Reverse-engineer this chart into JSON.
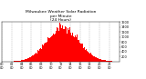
{
  "title": "Milwaukee Weather Solar Radiation\nper Minute\n(24 Hours)",
  "title_fontsize": 3.2,
  "bar_color": "#ff0000",
  "bg_color": "#ffffff",
  "ylim": [
    0,
    1600
  ],
  "yticks": [
    200,
    400,
    600,
    800,
    1000,
    1200,
    1400,
    1600
  ],
  "ytick_labels": [
    "200",
    "400",
    "600",
    "800",
    "1000",
    "1200",
    "1400",
    "1600"
  ],
  "num_points": 1440,
  "peak_value": 1380,
  "peak_minute": 750,
  "spread": 200,
  "noise_scale": 80,
  "grid_color": "#999999",
  "tick_fontsize": 2.5,
  "xtick_interval": 120
}
